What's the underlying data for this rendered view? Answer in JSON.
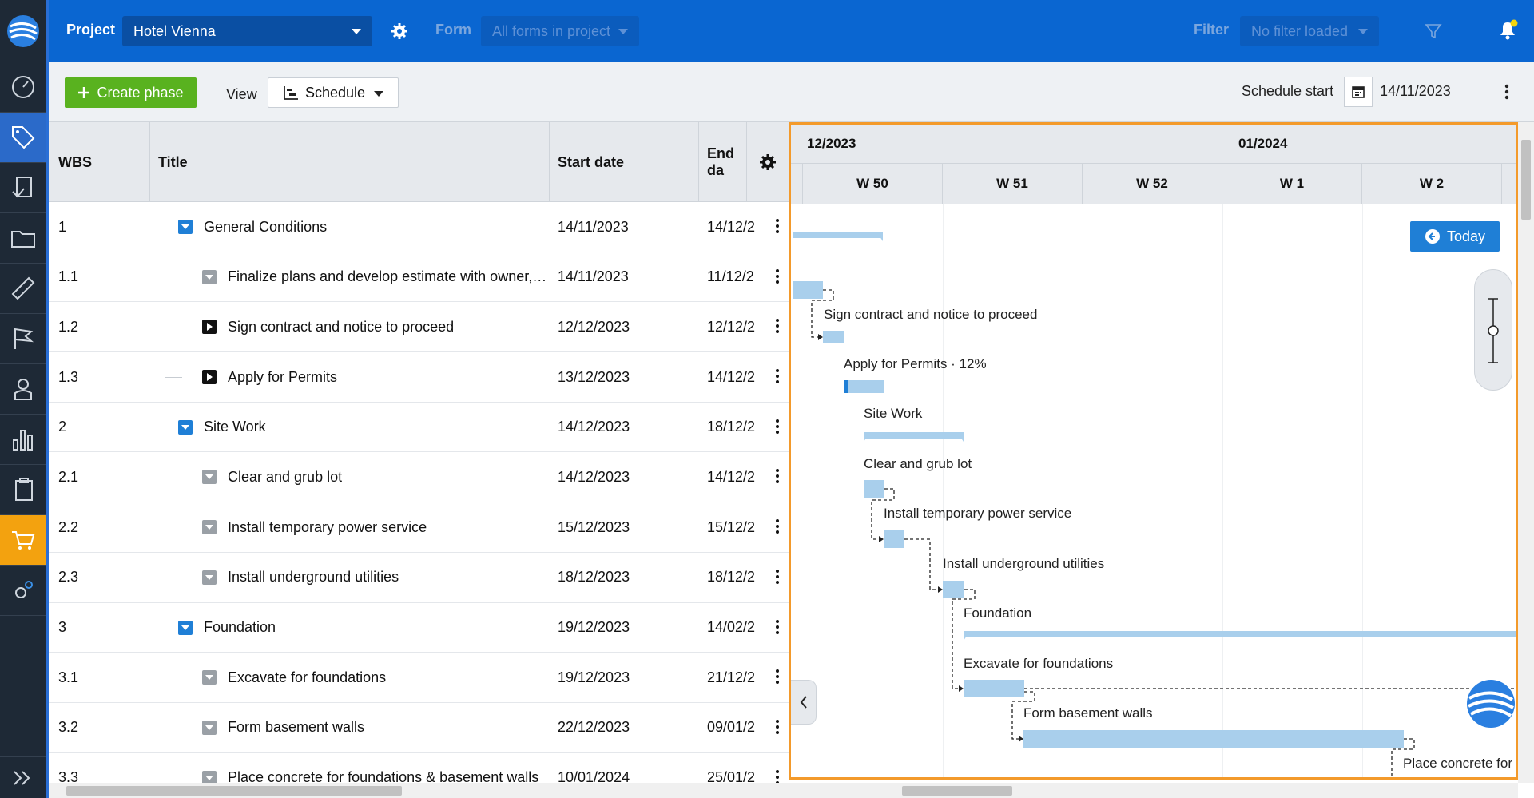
{
  "topbar": {
    "project_label": "Project",
    "project_value": "Hotel Vienna",
    "form_label": "Form",
    "form_value": "All forms in project",
    "filter_label": "Filter",
    "filter_value": "No filter loaded"
  },
  "toolbar": {
    "create_label": "Create phase",
    "view_label": "View",
    "view_value": "Schedule",
    "schedule_start_label": "Schedule start",
    "schedule_start_value": "14/11/2023"
  },
  "grid": {
    "columns": {
      "wbs": "WBS",
      "title": "Title",
      "start": "Start date",
      "end": "End da"
    },
    "rows": [
      {
        "wbs": "1",
        "title": "General Conditions",
        "start": "14/11/2023",
        "end": "14/12/2"
      },
      {
        "wbs": "1.1",
        "title": "Finalize plans and develop estimate with owner, arc...",
        "start": "14/11/2023",
        "end": "11/12/2"
      },
      {
        "wbs": "1.2",
        "title": "Sign contract and notice to proceed",
        "start": "12/12/2023",
        "end": "12/12/2"
      },
      {
        "wbs": "1.3",
        "title": "Apply for Permits",
        "start": "13/12/2023",
        "end": "14/12/2"
      },
      {
        "wbs": "2",
        "title": "Site Work",
        "start": "14/12/2023",
        "end": "18/12/2"
      },
      {
        "wbs": "2.1",
        "title": "Clear and grub lot",
        "start": "14/12/2023",
        "end": "14/12/2"
      },
      {
        "wbs": "2.2",
        "title": "Install temporary power service",
        "start": "15/12/2023",
        "end": "15/12/2"
      },
      {
        "wbs": "2.3",
        "title": "Install underground utilities",
        "start": "18/12/2023",
        "end": "18/12/2"
      },
      {
        "wbs": "3",
        "title": "Foundation",
        "start": "19/12/2023",
        "end": "14/02/2"
      },
      {
        "wbs": "3.1",
        "title": "Excavate for foundations",
        "start": "19/12/2023",
        "end": "21/12/2"
      },
      {
        "wbs": "3.2",
        "title": "Form basement walls",
        "start": "22/12/2023",
        "end": "09/01/2"
      },
      {
        "wbs": "3.3",
        "title": "Place concrete for foundations & basement walls",
        "start": "10/01/2024",
        "end": "25/01/2"
      }
    ]
  },
  "gantt": {
    "months": [
      "12/2023",
      "01/2024"
    ],
    "weeks": [
      "W 50",
      "W 51",
      "W 52",
      "W 1",
      "W 2"
    ],
    "today_label": "Today",
    "labels": {
      "sign": "Sign contract and notice to proceed",
      "permits": "Apply for Permits · 12%",
      "sitework": "Site Work",
      "clear": "Clear and grub lot",
      "power": "Install temporary power service",
      "utilities": "Install underground utilities",
      "foundation": "Foundation",
      "excavate": "Excavate for foundations",
      "basement": "Form basement walls",
      "concrete": "Place concrete for"
    }
  },
  "colors": {
    "accent": "#0a66d1",
    "create": "#59b21f",
    "bar": "#a9cfec",
    "highlight": "#f39a2b"
  }
}
